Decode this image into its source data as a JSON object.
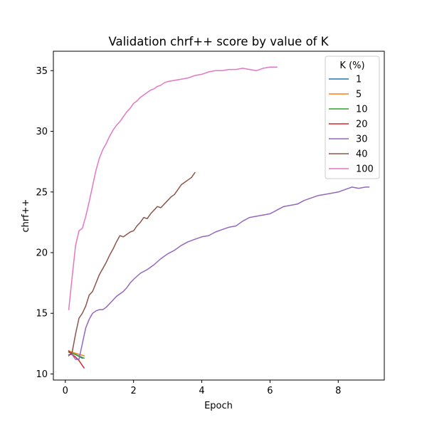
{
  "chart_data": {
    "type": "line",
    "title": "Validation chrf++ score by value of K",
    "xlabel": "Epoch",
    "ylabel": "chrf++",
    "xlim": [
      -0.35,
      9.35
    ],
    "ylim": [
      9.5,
      36.6
    ],
    "xticks": [
      0,
      2,
      4,
      6,
      8
    ],
    "yticks": [
      10,
      15,
      20,
      25,
      30,
      35
    ],
    "grid": false,
    "legend": {
      "title": "K (%)",
      "placement": "top-right"
    },
    "series": [
      {
        "name": "1",
        "color": "#1f77b4",
        "x": [
          0.1,
          0.3,
          0.5
        ],
        "y": [
          11.8,
          11.6,
          11.3
        ]
      },
      {
        "name": "5",
        "color": "#ff7f0e",
        "x": [
          0.1,
          0.3,
          0.55
        ],
        "y": [
          11.9,
          11.7,
          11.5
        ]
      },
      {
        "name": "10",
        "color": "#2ca02c",
        "x": [
          0.1,
          0.3,
          0.55
        ],
        "y": [
          11.8,
          11.6,
          11.3
        ]
      },
      {
        "name": "20",
        "color": "#d62728",
        "x": [
          0.1,
          0.2,
          0.3,
          0.4,
          0.55
        ],
        "y": [
          11.9,
          11.6,
          11.4,
          11.1,
          10.5
        ]
      },
      {
        "name": "30",
        "color": "#9467bd",
        "x": [
          0.1,
          0.2,
          0.3,
          0.4,
          0.5,
          0.6,
          0.7,
          0.8,
          0.9,
          1.0,
          1.1,
          1.2,
          1.3,
          1.4,
          1.5,
          1.6,
          1.7,
          1.8,
          1.9,
          2.0,
          2.2,
          2.4,
          2.6,
          2.8,
          3.0,
          3.2,
          3.4,
          3.6,
          3.8,
          4.0,
          4.2,
          4.4,
          4.6,
          4.8,
          5.0,
          5.2,
          5.4,
          5.6,
          5.8,
          6.0,
          6.2,
          6.4,
          6.6,
          6.8,
          7.0,
          7.2,
          7.4,
          7.6,
          7.8,
          8.0,
          8.2,
          8.4,
          8.6,
          8.8,
          8.9
        ],
        "y": [
          11.6,
          11.6,
          11.2,
          11.2,
          12.5,
          13.8,
          14.5,
          15.0,
          15.2,
          15.3,
          15.3,
          15.5,
          15.8,
          16.1,
          16.4,
          16.6,
          16.8,
          17.1,
          17.5,
          17.8,
          18.3,
          18.6,
          19.0,
          19.5,
          19.9,
          20.2,
          20.6,
          20.9,
          21.1,
          21.3,
          21.4,
          21.7,
          21.9,
          22.1,
          22.2,
          22.6,
          22.9,
          23.0,
          23.1,
          23.2,
          23.5,
          23.8,
          23.9,
          24.0,
          24.3,
          24.5,
          24.7,
          24.8,
          24.9,
          25.0,
          25.2,
          25.4,
          25.3,
          25.4,
          25.4
        ]
      },
      {
        "name": "40",
        "color": "#8c564b",
        "x": [
          0.1,
          0.2,
          0.3,
          0.4,
          0.5,
          0.6,
          0.7,
          0.8,
          0.9,
          1.0,
          1.1,
          1.2,
          1.3,
          1.4,
          1.5,
          1.6,
          1.7,
          1.8,
          1.9,
          2.0,
          2.1,
          2.2,
          2.3,
          2.4,
          2.5,
          2.6,
          2.7,
          2.8,
          2.9,
          3.0,
          3.1,
          3.2,
          3.3,
          3.4,
          3.5,
          3.6,
          3.7,
          3.8
        ],
        "y": [
          11.5,
          11.8,
          13.3,
          14.6,
          15.0,
          15.6,
          16.5,
          16.8,
          17.5,
          18.2,
          18.7,
          19.2,
          19.8,
          20.3,
          20.9,
          21.4,
          21.3,
          21.5,
          21.7,
          21.8,
          22.2,
          22.5,
          22.9,
          22.8,
          23.2,
          23.5,
          23.8,
          23.7,
          24.0,
          24.3,
          24.6,
          24.8,
          25.2,
          25.6,
          25.8,
          26.0,
          26.2,
          26.6
        ]
      },
      {
        "name": "100",
        "color": "#e377c2",
        "x": [
          0.1,
          0.2,
          0.3,
          0.4,
          0.5,
          0.6,
          0.7,
          0.8,
          0.9,
          1.0,
          1.1,
          1.2,
          1.3,
          1.4,
          1.5,
          1.6,
          1.7,
          1.8,
          1.9,
          2.0,
          2.1,
          2.2,
          2.3,
          2.4,
          2.5,
          2.6,
          2.7,
          2.8,
          2.9,
          3.0,
          3.2,
          3.4,
          3.6,
          3.8,
          4.0,
          4.2,
          4.4,
          4.6,
          4.8,
          5.0,
          5.2,
          5.4,
          5.6,
          5.8,
          6.0,
          6.2
        ],
        "y": [
          15.3,
          18.0,
          20.6,
          21.8,
          22.0,
          23.0,
          24.2,
          25.5,
          26.8,
          27.8,
          28.5,
          29.0,
          29.6,
          30.1,
          30.5,
          30.8,
          31.2,
          31.6,
          31.9,
          32.3,
          32.5,
          32.8,
          33.0,
          33.2,
          33.4,
          33.5,
          33.7,
          33.8,
          34.0,
          34.1,
          34.2,
          34.3,
          34.4,
          34.6,
          34.7,
          34.9,
          35.0,
          35.0,
          35.1,
          35.1,
          35.2,
          35.1,
          35.0,
          35.2,
          35.3,
          35.3
        ]
      }
    ]
  }
}
